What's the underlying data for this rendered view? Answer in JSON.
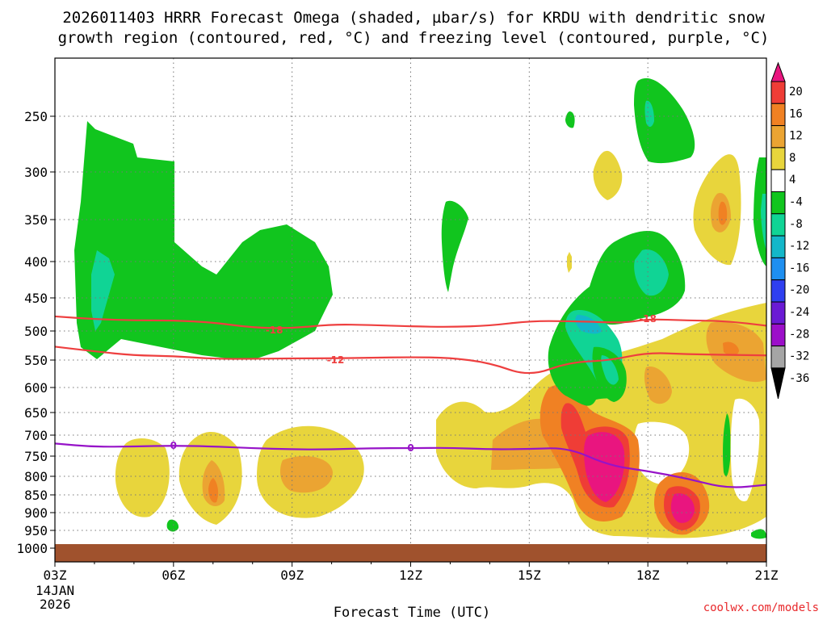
{
  "chart_data": {
    "type": "heatmap",
    "title_line1": "2026011403 HRRR Forecast Omega (shaded, µbar/s) for KRDU with dendritic snow",
    "title_line2": "growth region (contoured, red, °C) and freezing level (contoured, purple, °C)",
    "xlabel": "Forecast Time (UTC)",
    "ylabel": "",
    "x_ticks": [
      "03Z",
      "06Z",
      "09Z",
      "12Z",
      "15Z",
      "18Z",
      "21Z"
    ],
    "x_hours": [
      3,
      6,
      9,
      12,
      15,
      18,
      21
    ],
    "date_line1": "14JAN",
    "date_line2": "2026",
    "y_ticks": [
      250,
      300,
      350,
      400,
      450,
      500,
      550,
      600,
      650,
      700,
      750,
      800,
      850,
      900,
      950,
      1000
    ],
    "xlim": [
      3,
      21
    ],
    "ylim_hpa": [
      1000,
      200
    ],
    "colorbar": {
      "labels": [
        "20",
        "16",
        "12",
        "8",
        "4",
        "-4",
        "-8",
        "-12",
        "-16",
        "-20",
        "-24",
        "-28",
        "-32",
        "-36"
      ],
      "colors": [
        "#e9157f",
        "#ef3d36",
        "#f08123",
        "#eba432",
        "#e8d53c",
        "#ffffff",
        "#11c51e",
        "#10d495",
        "#13b7c9",
        "#1e8ff0",
        "#2f3ff0",
        "#6a1ad4",
        "#9c0fc9",
        "#a5a5a5",
        "#000000"
      ]
    },
    "contours": [
      {
        "name": "dgz -18",
        "label": "-18",
        "color": "#ee3f3f",
        "points": [
          [
            3,
            478
          ],
          [
            4,
            482
          ],
          [
            5,
            484
          ],
          [
            6,
            484
          ],
          [
            7,
            487
          ],
          [
            8,
            495
          ],
          [
            9,
            496
          ],
          [
            10,
            490
          ],
          [
            11,
            491
          ],
          [
            12,
            493
          ],
          [
            13,
            494
          ],
          [
            14,
            492
          ],
          [
            15,
            485
          ],
          [
            16,
            485
          ],
          [
            17,
            487
          ],
          [
            17.5,
            487
          ],
          [
            18,
            482
          ],
          [
            19,
            484
          ],
          [
            20,
            485
          ],
          [
            21,
            492
          ]
        ],
        "label_at": [
          8.55,
          499
        ]
      },
      {
        "name": "dgz -12",
        "label": "-12",
        "color": "#ee3f3f",
        "points": [
          [
            3,
            527
          ],
          [
            4,
            535
          ],
          [
            5,
            542
          ],
          [
            6,
            543
          ],
          [
            7,
            548
          ],
          [
            8,
            548
          ],
          [
            9,
            547
          ],
          [
            10,
            547
          ],
          [
            11,
            546
          ],
          [
            12,
            545
          ],
          [
            13,
            546
          ],
          [
            14,
            555
          ],
          [
            15,
            580
          ],
          [
            16,
            554
          ],
          [
            17,
            551
          ],
          [
            18,
            537
          ],
          [
            19,
            540
          ],
          [
            20,
            541
          ],
          [
            21,
            542
          ]
        ],
        "label_at": [
          10.1,
          550
        ]
      },
      {
        "name": "freezing level 0",
        "label": "0",
        "color": "#9613c8",
        "points": [
          [
            3,
            720
          ],
          [
            4,
            728
          ],
          [
            5,
            727
          ],
          [
            6,
            725
          ],
          [
            7,
            727
          ],
          [
            8,
            731
          ],
          [
            9,
            734
          ],
          [
            10,
            734
          ],
          [
            11,
            731
          ],
          [
            12,
            731
          ],
          [
            13,
            730
          ],
          [
            14,
            734
          ],
          [
            15,
            733
          ],
          [
            16,
            730
          ],
          [
            17,
            773
          ],
          [
            18,
            787
          ],
          [
            19,
            806
          ],
          [
            20,
            833
          ],
          [
            21,
            823
          ]
        ],
        "label_at": [
          6.0,
          725
        ]
      }
    ],
    "omega_regions": [
      {
        "level": "-4 to -8",
        "color": "#11c51e",
        "desc": "upper-left ascent 04Z-10Z"
      },
      {
        "level": "-8 to -12",
        "color": "#10d495",
        "desc": "04Z 400-500 hPa"
      },
      {
        "level": "4 to 8",
        "color": "#e8d53c",
        "desc": "low-level descent 04Z-21Z"
      },
      {
        "level": "8 to 12",
        "color": "#eba432",
        "desc": "embedded maxima"
      },
      {
        "level": "12 to 16",
        "color": "#f08123",
        "desc": "16Z-19Z"
      },
      {
        "level": "16 to 20",
        "color": "#ef3d36",
        "desc": "17Z,19Z"
      },
      {
        "level": "> 20",
        "color": "#e9157f",
        "desc": "17Z 700-850 hPa, 19Z 850-900 hPa"
      }
    ],
    "ground_color": "#a0522d"
  },
  "credit": "coolwx.com/models"
}
